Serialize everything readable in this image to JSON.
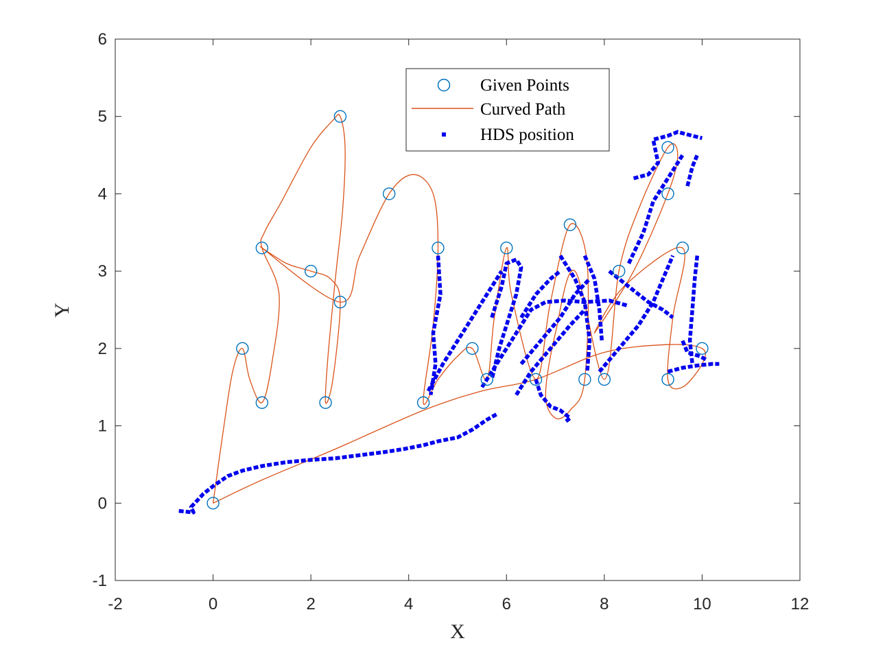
{
  "chart_data": {
    "type": "line",
    "xlabel": "X",
    "ylabel": "Y",
    "xlim": [
      -2,
      12
    ],
    "ylim": [
      -1,
      6
    ],
    "xticks": [
      -2,
      0,
      2,
      4,
      6,
      8,
      10,
      12
    ],
    "yticks": [
      -1,
      0,
      1,
      2,
      3,
      4,
      5,
      6
    ],
    "grid": false,
    "legend_position": "top-center",
    "legend": [
      {
        "label": "Given Points",
        "marker": "circle",
        "color": "#0072BD"
      },
      {
        "label": "Curved Path",
        "marker": "line",
        "color": "#D95319"
      },
      {
        "label": "HDS position",
        "marker": "square-dot",
        "color": "#0000EE"
      }
    ],
    "given_points": [
      [
        0,
        0
      ],
      [
        0.6,
        2
      ],
      [
        1,
        1.3
      ],
      [
        1,
        3.3
      ],
      [
        2,
        3
      ],
      [
        2.6,
        5
      ],
      [
        2.3,
        1.3
      ],
      [
        2.6,
        2.6
      ],
      [
        3.6,
        4
      ],
      [
        4.3,
        1.3
      ],
      [
        4.6,
        3.3
      ],
      [
        5.3,
        2
      ],
      [
        5.6,
        1.6
      ],
      [
        6,
        3.3
      ],
      [
        6.6,
        1.6
      ],
      [
        7.3,
        3.6
      ],
      [
        7.6,
        1.6
      ],
      [
        8,
        1.6
      ],
      [
        8.3,
        3
      ],
      [
        9.3,
        4.6
      ],
      [
        9.3,
        4
      ],
      [
        9.6,
        3.3
      ],
      [
        9.3,
        1.6
      ],
      [
        10,
        2
      ]
    ],
    "curved_path": [
      [
        0,
        0
      ],
      [
        0.2,
        0.9
      ],
      [
        0.4,
        1.7
      ],
      [
        0.6,
        2
      ],
      [
        0.75,
        1.6
      ],
      [
        1,
        1.3
      ],
      [
        1.2,
        1.8
      ],
      [
        1.35,
        2.7
      ],
      [
        1,
        3.3
      ],
      [
        1.05,
        3.5
      ],
      [
        1.4,
        3.9
      ],
      [
        2.0,
        4.6
      ],
      [
        2.45,
        4.95
      ],
      [
        2.6,
        5
      ],
      [
        2.7,
        4.6
      ],
      [
        2.65,
        3.8
      ],
      [
        2.5,
        2.9
      ],
      [
        2.35,
        1.9
      ],
      [
        2.3,
        1.3
      ],
      [
        2.45,
        1.6
      ],
      [
        2.6,
        2.6
      ],
      [
        2.4,
        2.9
      ],
      [
        2.0,
        3
      ],
      [
        1.5,
        3.1
      ],
      [
        1.0,
        3.3
      ],
      [
        2.6,
        2.6
      ],
      [
        3.0,
        3.2
      ],
      [
        3.6,
        4
      ],
      [
        4.1,
        4.25
      ],
      [
        4.5,
        4.0
      ],
      [
        4.6,
        3.3
      ],
      [
        4.5,
        2.3
      ],
      [
        4.3,
        1.3
      ],
      [
        4.6,
        1.6
      ],
      [
        5.0,
        1.9
      ],
      [
        5.3,
        2
      ],
      [
        5.6,
        1.6
      ],
      [
        5.75,
        2.4
      ],
      [
        6.0,
        3.3
      ],
      [
        6.1,
        2.7
      ],
      [
        6.6,
        1.6
      ],
      [
        6.9,
        2.6
      ],
      [
        7.3,
        3.6
      ],
      [
        7.65,
        3.1
      ],
      [
        7.6,
        1.6
      ],
      [
        7.3,
        1.2
      ],
      [
        7.0,
        1.1
      ],
      [
        6.8,
        1.4
      ],
      [
        7.0,
        2.2
      ],
      [
        7.4,
        3.0
      ],
      [
        8.0,
        1.6
      ],
      [
        8.3,
        3
      ],
      [
        8.7,
        3.8
      ],
      [
        9.3,
        4.6
      ],
      [
        9.5,
        4.5
      ],
      [
        9.3,
        4
      ],
      [
        8.6,
        3.0
      ],
      [
        7.8,
        2.2
      ],
      [
        8.4,
        2.8
      ],
      [
        9.6,
        3.3
      ],
      [
        9.4,
        2.4
      ],
      [
        9.3,
        1.6
      ],
      [
        9.6,
        1.5
      ],
      [
        10.0,
        1.8
      ],
      [
        10.0,
        2
      ],
      [
        9.3,
        2.05
      ],
      [
        8.0,
        1.95
      ],
      [
        6.6,
        1.6
      ],
      [
        5.5,
        1.45
      ],
      [
        4.3,
        1.2
      ],
      [
        2.5,
        0.7
      ],
      [
        1.0,
        0.3
      ],
      [
        0,
        0
      ]
    ],
    "hds_segments": [
      [
        [
          -0.7,
          -0.1
        ],
        [
          -0.4,
          -0.12
        ],
        [
          -0.45,
          -0.05
        ],
        [
          -0.3,
          0.05
        ],
        [
          -0.2,
          0.12
        ],
        [
          0,
          0.22
        ],
        [
          0.3,
          0.35
        ],
        [
          0.6,
          0.42
        ],
        [
          1.0,
          0.48
        ],
        [
          1.5,
          0.53
        ],
        [
          2.0,
          0.56
        ],
        [
          2.5,
          0.58
        ],
        [
          3.0,
          0.62
        ],
        [
          3.5,
          0.66
        ],
        [
          3.9,
          0.7
        ],
        [
          4.3,
          0.75
        ],
        [
          4.6,
          0.8
        ],
        [
          5.0,
          0.85
        ],
        [
          5.3,
          0.95
        ],
        [
          5.6,
          1.08
        ],
        [
          5.8,
          1.15
        ]
      ],
      [
        [
          4.6,
          3.2
        ],
        [
          4.65,
          2.7
        ],
        [
          4.5,
          2.2
        ],
        [
          4.55,
          1.8
        ],
        [
          4.45,
          1.4
        ]
      ],
      [
        [
          4.4,
          1.45
        ],
        [
          4.7,
          1.8
        ],
        [
          5.0,
          2.1
        ],
        [
          5.2,
          2.3
        ],
        [
          5.5,
          2.6
        ],
        [
          5.7,
          2.8
        ],
        [
          5.9,
          3.0
        ]
      ],
      [
        [
          5.7,
          2.4
        ],
        [
          5.9,
          2.8
        ],
        [
          6.0,
          3.1
        ],
        [
          6.2,
          3.15
        ],
        [
          6.3,
          3.05
        ],
        [
          6.2,
          2.7
        ],
        [
          6.0,
          2.3
        ],
        [
          5.85,
          2.0
        ],
        [
          5.7,
          1.6
        ]
      ],
      [
        [
          6.3,
          2.4
        ],
        [
          6.6,
          2.7
        ],
        [
          6.9,
          2.9
        ],
        [
          7.1,
          3.0
        ]
      ],
      [
        [
          5.5,
          1.5
        ],
        [
          5.8,
          1.8
        ],
        [
          6.1,
          2.1
        ],
        [
          6.5,
          2.5
        ],
        [
          6.8,
          2.6
        ],
        [
          7.2,
          2.62
        ],
        [
          7.6,
          2.6
        ],
        [
          8.1,
          2.62
        ],
        [
          8.5,
          2.55
        ]
      ],
      [
        [
          6.3,
          1.8
        ],
        [
          6.7,
          2.1
        ],
        [
          7.1,
          2.4
        ],
        [
          7.4,
          2.7
        ],
        [
          7.7,
          2.9
        ]
      ],
      [
        [
          6.2,
          1.4
        ],
        [
          6.5,
          1.7
        ],
        [
          6.9,
          2.0
        ],
        [
          7.3,
          2.3
        ],
        [
          7.6,
          2.5
        ]
      ],
      [
        [
          6.6,
          1.6
        ],
        [
          6.7,
          1.4
        ],
        [
          6.9,
          1.25
        ],
        [
          7.1,
          1.2
        ],
        [
          7.3,
          1.1
        ],
        [
          7.2,
          1.05
        ]
      ],
      [
        [
          7.1,
          3.2
        ],
        [
          7.4,
          2.9
        ],
        [
          7.6,
          2.6
        ],
        [
          7.7,
          2.1
        ],
        [
          7.65,
          1.7
        ]
      ],
      [
        [
          7.6,
          3.2
        ],
        [
          7.8,
          2.9
        ],
        [
          7.9,
          2.5
        ],
        [
          7.95,
          2.1
        ]
      ],
      [
        [
          7.9,
          1.7
        ],
        [
          8.3,
          2.0
        ],
        [
          8.7,
          2.3
        ],
        [
          9.0,
          2.6
        ],
        [
          9.2,
          2.9
        ],
        [
          9.4,
          3.2
        ]
      ],
      [
        [
          8.1,
          3.0
        ],
        [
          8.5,
          2.8
        ],
        [
          8.9,
          2.6
        ],
        [
          9.2,
          2.5
        ],
        [
          9.4,
          2.4
        ]
      ],
      [
        [
          8.5,
          3.1
        ],
        [
          8.8,
          3.5
        ],
        [
          9.0,
          3.9
        ],
        [
          9.3,
          4.2
        ],
        [
          9.6,
          4.5
        ]
      ],
      [
        [
          8.6,
          4.2
        ],
        [
          8.9,
          4.25
        ],
        [
          9.1,
          4.4
        ],
        [
          9.0,
          4.7
        ],
        [
          9.3,
          4.75
        ],
        [
          9.5,
          4.8
        ],
        [
          9.8,
          4.75
        ],
        [
          10.0,
          4.72
        ]
      ],
      [
        [
          9.7,
          4.1
        ],
        [
          9.8,
          4.35
        ],
        [
          9.9,
          4.5
        ]
      ],
      [
        [
          9.9,
          3.2
        ],
        [
          9.85,
          2.9
        ],
        [
          9.8,
          2.5
        ],
        [
          9.75,
          2.1
        ],
        [
          9.8,
          1.8
        ]
      ],
      [
        [
          9.3,
          1.7
        ],
        [
          9.6,
          1.75
        ],
        [
          9.9,
          1.78
        ],
        [
          10.2,
          1.8
        ],
        [
          10.35,
          1.8
        ]
      ],
      [
        [
          9.6,
          2.1
        ],
        [
          9.7,
          1.95
        ],
        [
          9.95,
          1.9
        ],
        [
          10.1,
          1.85
        ]
      ]
    ]
  }
}
